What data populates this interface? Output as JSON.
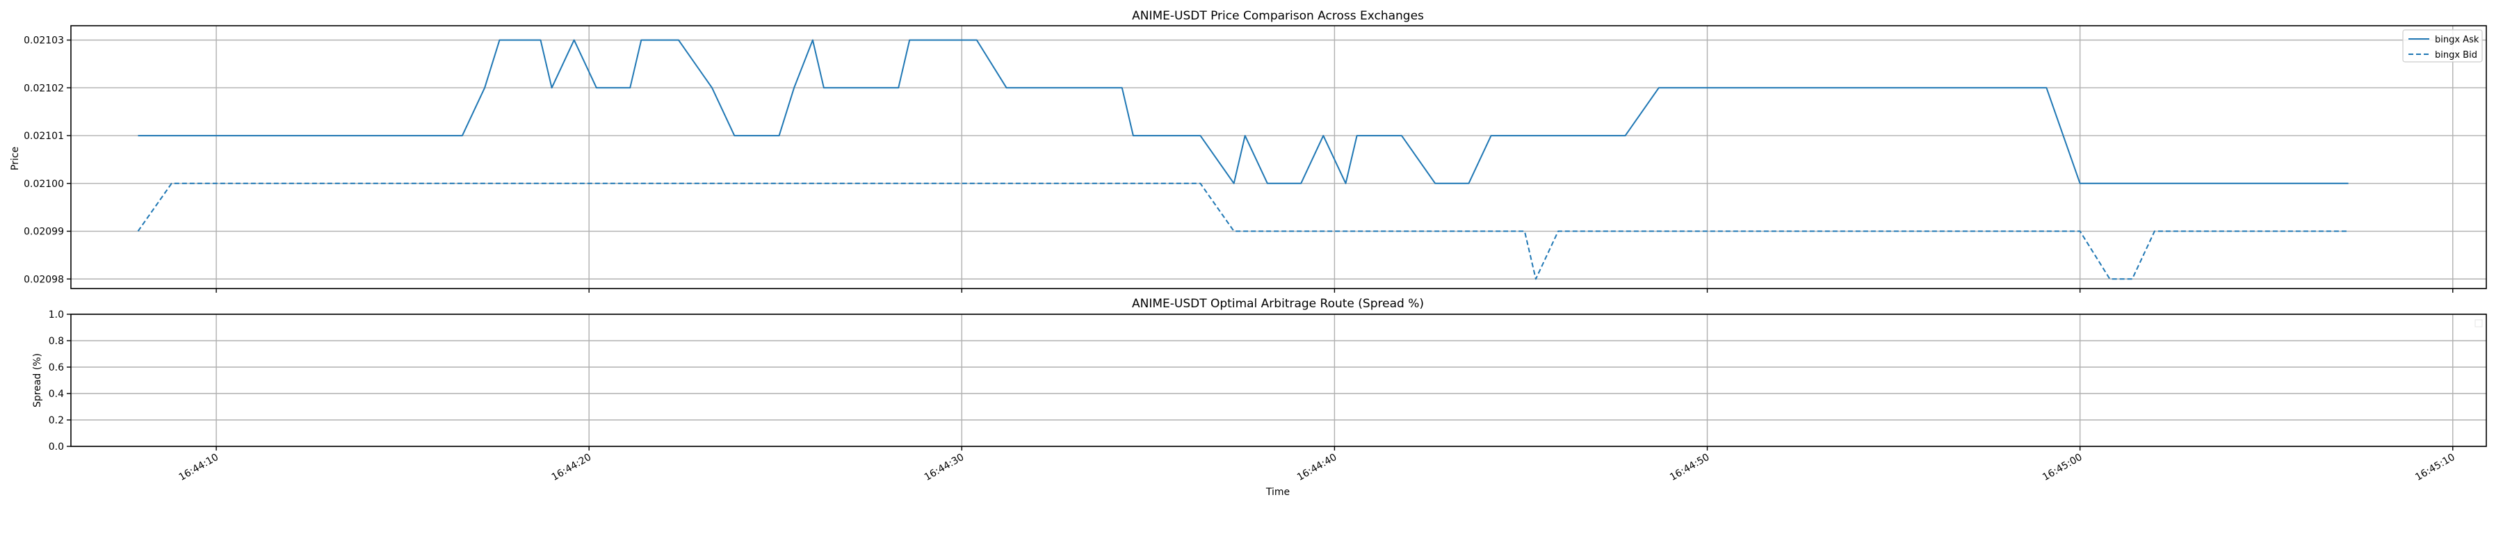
{
  "chart_data": [
    {
      "type": "line",
      "title": "ANIME-USDT Price Comparison Across Exchanges",
      "xlabel": "",
      "ylabel": "Price",
      "ylim": [
        0.020978,
        0.021033
      ],
      "yticks": [
        "0.02098",
        "0.02099",
        "0.02100",
        "0.02101",
        "0.02102",
        "0.02103"
      ],
      "grid": true,
      "legend": "top-right",
      "series": [
        {
          "name": "bingx Ask",
          "style": "solid",
          "color": "#1f77b4",
          "points": [
            [
              "16:44:07.9",
              0.02101
            ],
            [
              "16:44:16.6",
              0.02101
            ],
            [
              "16:44:17.2",
              0.02102
            ],
            [
              "16:44:17.6",
              0.02103
            ],
            [
              "16:44:18.7",
              0.02103
            ],
            [
              "16:44:19.0",
              0.02102
            ],
            [
              "16:44:19.6",
              0.02103
            ],
            [
              "16:44:20.2",
              0.02102
            ],
            [
              "16:44:21.1",
              0.02102
            ],
            [
              "16:44:21.4",
              0.02103
            ],
            [
              "16:44:22.4",
              0.02103
            ],
            [
              "16:44:23.3",
              0.02102
            ],
            [
              "16:44:23.9",
              0.02101
            ],
            [
              "16:44:25.1",
              0.02101
            ],
            [
              "16:44:25.5",
              0.02102
            ],
            [
              "16:44:26.0",
              0.02103
            ],
            [
              "16:44:26.3",
              0.02102
            ],
            [
              "16:44:28.3",
              0.02102
            ],
            [
              "16:44:28.6",
              0.02103
            ],
            [
              "16:44:30.4",
              0.02103
            ],
            [
              "16:44:31.2",
              0.02102
            ],
            [
              "16:44:34.3",
              0.02102
            ],
            [
              "16:44:34.6",
              0.02101
            ],
            [
              "16:44:36.4",
              0.02101
            ],
            [
              "16:44:37.3",
              0.021
            ],
            [
              "16:44:37.6",
              0.02101
            ],
            [
              "16:44:38.2",
              0.021
            ],
            [
              "16:44:39.1",
              0.021
            ],
            [
              "16:44:39.7",
              0.02101
            ],
            [
              "16:44:40.3",
              0.021
            ],
            [
              "16:44:40.6",
              0.02101
            ],
            [
              "16:44:41.8",
              0.02101
            ],
            [
              "16:44:42.7",
              0.021
            ],
            [
              "16:44:43.6",
              0.021
            ],
            [
              "16:44:44.2",
              0.02101
            ],
            [
              "16:44:47.8",
              0.02101
            ],
            [
              "16:44:48.7",
              0.02102
            ],
            [
              "16:44:59.1",
              0.02102
            ],
            [
              "16:45:00.0",
              0.021
            ],
            [
              "16:45:07.2",
              0.021
            ]
          ]
        },
        {
          "name": "bingx Bid",
          "style": "dashed",
          "color": "#1f77b4",
          "points": [
            [
              "16:44:07.9",
              0.02099
            ],
            [
              "16:44:08.8",
              0.021
            ],
            [
              "16:44:36.4",
              0.021
            ],
            [
              "16:44:37.3",
              0.02099
            ],
            [
              "16:44:45.1",
              0.02099
            ],
            [
              "16:44:45.4",
              0.02098
            ],
            [
              "16:44:46.0",
              0.02099
            ],
            [
              "16:45:00.0",
              0.02099
            ],
            [
              "16:45:00.8",
              0.02098
            ],
            [
              "16:45:01.4",
              0.02098
            ],
            [
              "16:45:02.0",
              0.02099
            ],
            [
              "16:45:07.2",
              0.02099
            ]
          ]
        }
      ]
    },
    {
      "type": "line",
      "title": "ANIME-USDT Optimal Arbitrage Route (Spread %)",
      "xlabel": "Time",
      "ylabel": "Spread (%)",
      "ylim": [
        0.0,
        1.0
      ],
      "yticks": [
        "0.0",
        "0.2",
        "0.4",
        "0.6",
        "0.8",
        "1.0"
      ],
      "xlim": [
        "16:44:06.1",
        "16:45:10.9"
      ],
      "xticks": [
        "16:44:10",
        "16:44:20",
        "16:44:30",
        "16:44:40",
        "16:44:50",
        "16:45:00",
        "16:45:10"
      ],
      "grid": true,
      "series": []
    }
  ]
}
